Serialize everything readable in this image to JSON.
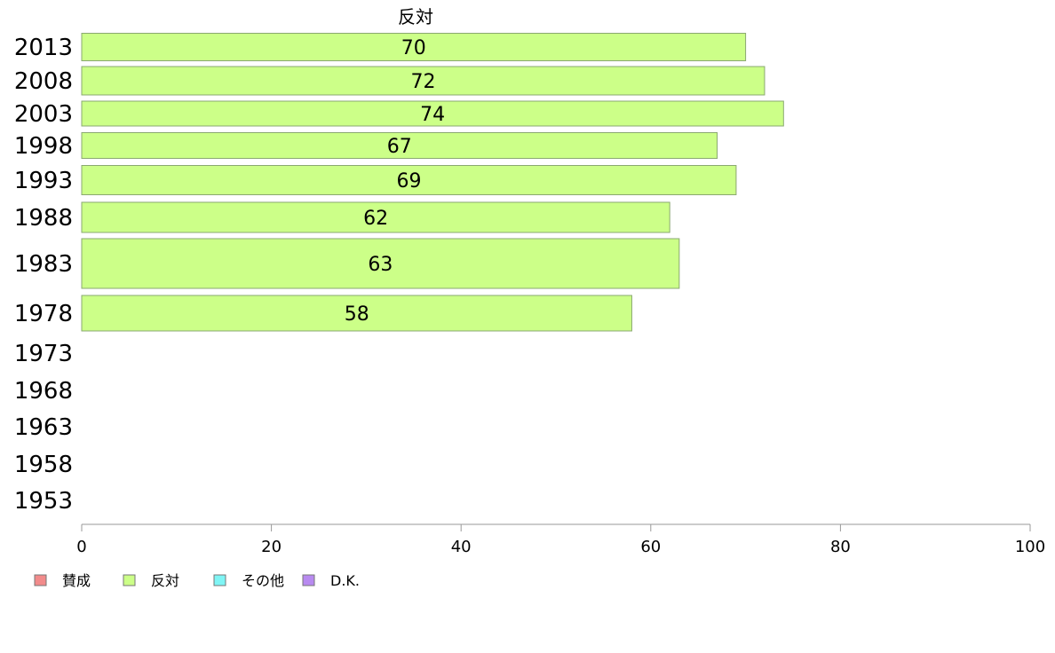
{
  "chart_data": {
    "type": "bar",
    "orientation": "horizontal",
    "series_title": "反対",
    "categories": [
      "2013",
      "2008",
      "2003",
      "1998",
      "1993",
      "1988",
      "1983",
      "1978",
      "1973",
      "1968",
      "1963",
      "1958",
      "1953"
    ],
    "series": [
      {
        "name": "反対",
        "color": "#ccff88",
        "values": [
          70,
          72,
          74,
          67,
          69,
          62,
          63,
          58,
          null,
          null,
          null,
          null,
          null
        ]
      }
    ],
    "xlim": [
      0,
      100
    ],
    "xticks": [
      "0",
      "20",
      "40",
      "60",
      "80",
      "100"
    ],
    "grid": false,
    "legend_position": "bottom-left",
    "legend": [
      {
        "label": "賛成",
        "color": "#f28b8b"
      },
      {
        "label": "反対",
        "color": "#ccff88"
      },
      {
        "label": "その他",
        "color": "#7ff5f5"
      },
      {
        "label": "D.K.",
        "color": "#b88af0"
      }
    ]
  }
}
